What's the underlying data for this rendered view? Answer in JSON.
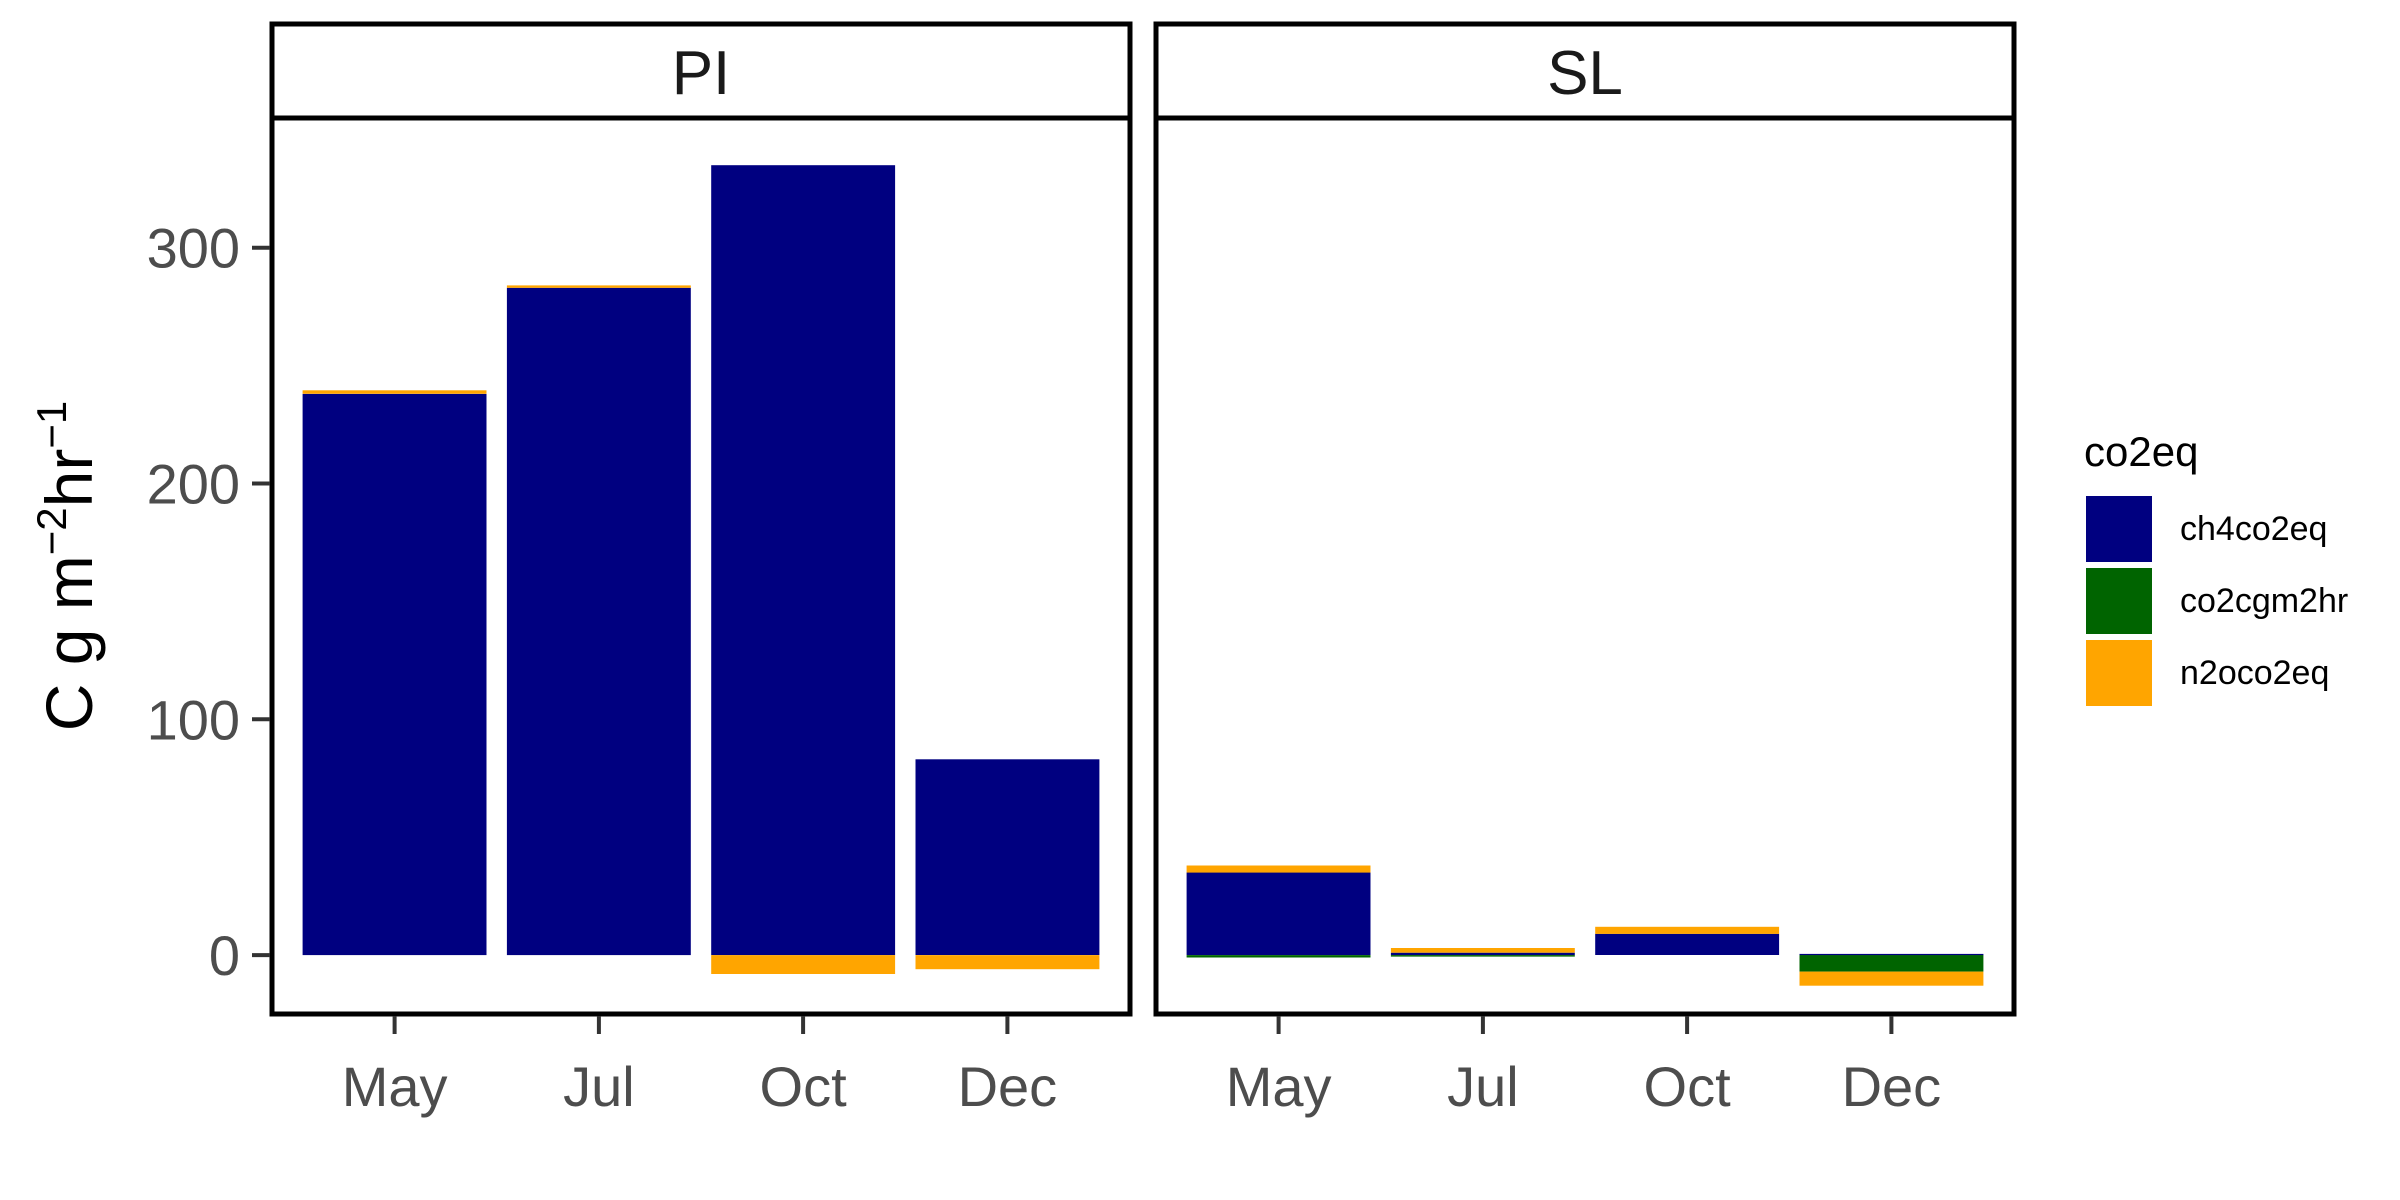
{
  "chart_data": {
    "type": "bar",
    "stacked": true,
    "facets": [
      "PI",
      "SL"
    ],
    "categories": [
      "May",
      "Jul",
      "Oct",
      "Dec"
    ],
    "ylabel": "C g m",
    "ylabel_sup1": "−2",
    "ylabel_mid": "hr",
    "ylabel_sup2": "−1",
    "ylim": [
      -25,
      355
    ],
    "yticks": [
      0,
      100,
      200,
      300
    ],
    "legend": {
      "title": "co2eq",
      "placement": "right",
      "entries": [
        "ch4co2eq",
        "co2cgm2hr",
        "n2oco2eq"
      ]
    },
    "colors": {
      "ch4co2eq": "#000080",
      "co2cgm2hr": "#006400",
      "n2oco2eq": "#FFA500"
    },
    "series": [
      {
        "name": "ch4co2eq",
        "values": {
          "PI": [
            238,
            283,
            335,
            83
          ],
          "SL": [
            35,
            1,
            9,
            0.5
          ]
        }
      },
      {
        "name": "co2cgm2hr",
        "values": {
          "PI": [
            0,
            0,
            0,
            0
          ],
          "SL": [
            -1,
            -0.5,
            0,
            -7
          ]
        }
      },
      {
        "name": "n2oco2eq",
        "values": {
          "PI": [
            1.5,
            1,
            -8,
            -6
          ],
          "SL": [
            3,
            2,
            3,
            -6
          ]
        }
      }
    ],
    "grid": false
  }
}
